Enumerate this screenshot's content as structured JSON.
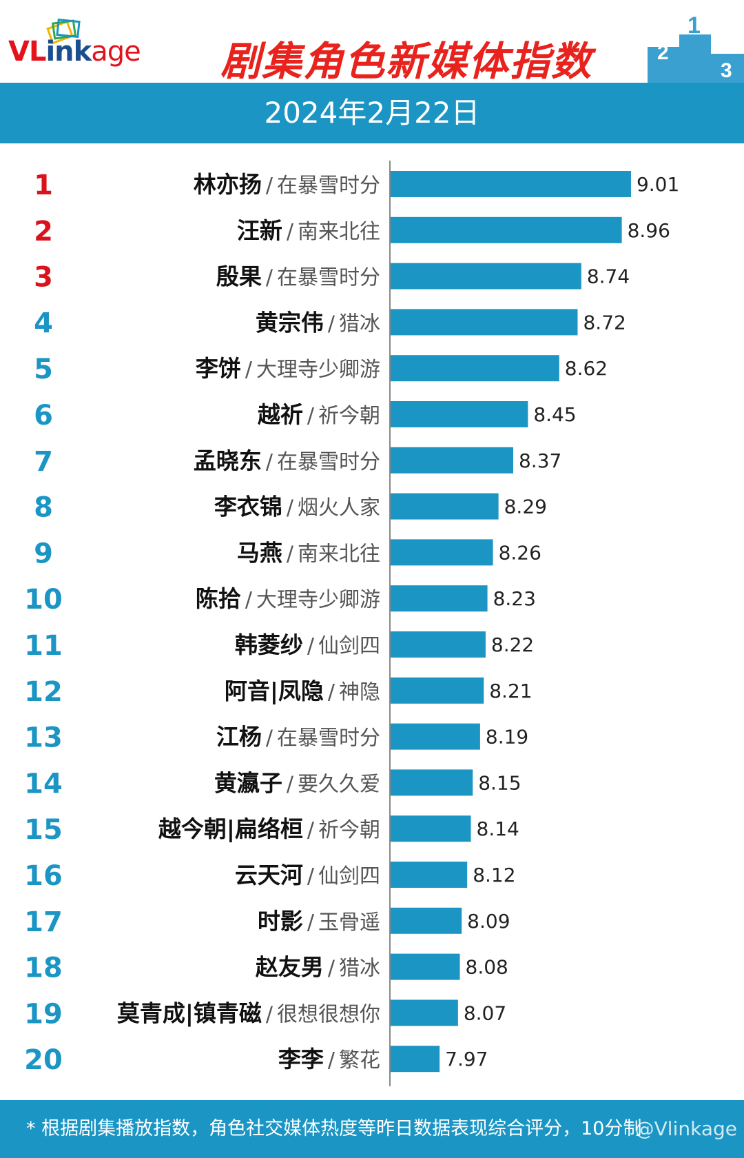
{
  "brand": {
    "logo_v": "VL",
    "logo_ink": "ink",
    "logo_age": "age"
  },
  "header": {
    "title": "剧集角色新媒体指数",
    "date": "2024年2月22日"
  },
  "footer": {
    "note": "* 根据剧集播放指数，角色社交媒体热度等昨日数据表现综合评分，10分制",
    "watermark": "@Vlinkage"
  },
  "colors": {
    "bar": "#1b95c4",
    "rank_top": "#d9121b",
    "rank_other": "#1b95c4",
    "title": "#e8221c"
  },
  "chart_data": {
    "type": "bar",
    "orientation": "horizontal",
    "title": "剧集角色新媒体指数",
    "xlim": [
      7.7,
      9.1
    ],
    "rows": [
      {
        "rank": "1",
        "name": "林亦扬",
        "drama": "在暴雪时分",
        "value": 9.01,
        "label": "9.01"
      },
      {
        "rank": "2",
        "name": "汪新",
        "drama": "南来北往",
        "value": 8.96,
        "label": "8.96"
      },
      {
        "rank": "3",
        "name": "殷果",
        "drama": "在暴雪时分",
        "value": 8.74,
        "label": "8.74"
      },
      {
        "rank": "4",
        "name": "黄宗伟",
        "drama": "猎冰",
        "value": 8.72,
        "label": "8.72"
      },
      {
        "rank": "5",
        "name": "李饼",
        "drama": "大理寺少卿游",
        "value": 8.62,
        "label": "8.62"
      },
      {
        "rank": "6",
        "name": "越祈",
        "drama": "祈今朝",
        "value": 8.45,
        "label": "8.45"
      },
      {
        "rank": "7",
        "name": "孟晓东",
        "drama": "在暴雪时分",
        "value": 8.37,
        "label": "8.37"
      },
      {
        "rank": "8",
        "name": "李衣锦",
        "drama": "烟火人家",
        "value": 8.29,
        "label": "8.29"
      },
      {
        "rank": "9",
        "name": "马燕",
        "drama": "南来北往",
        "value": 8.26,
        "label": "8.26"
      },
      {
        "rank": "10",
        "name": "陈拾",
        "drama": "大理寺少卿游",
        "value": 8.23,
        "label": "8.23"
      },
      {
        "rank": "11",
        "name": "韩菱纱",
        "drama": "仙剑四",
        "value": 8.22,
        "label": "8.22"
      },
      {
        "rank": "12",
        "name": "阿音|凤隐",
        "drama": "神隐",
        "value": 8.21,
        "label": "8.21"
      },
      {
        "rank": "13",
        "name": "江杨",
        "drama": "在暴雪时分",
        "value": 8.19,
        "label": "8.19"
      },
      {
        "rank": "14",
        "name": "黄瀛子",
        "drama": "要久久爱",
        "value": 8.15,
        "label": "8.15"
      },
      {
        "rank": "15",
        "name": "越今朝|扁络桓",
        "drama": "祈今朝",
        "value": 8.14,
        "label": "8.14"
      },
      {
        "rank": "16",
        "name": "云天河",
        "drama": "仙剑四",
        "value": 8.12,
        "label": "8.12"
      },
      {
        "rank": "17",
        "name": "时影",
        "drama": "玉骨遥",
        "value": 8.09,
        "label": "8.09"
      },
      {
        "rank": "18",
        "name": "赵友男",
        "drama": "猎冰",
        "value": 8.08,
        "label": "8.08"
      },
      {
        "rank": "19",
        "name": "莫青成|镇青磁",
        "drama": "很想很想你",
        "value": 8.07,
        "label": "8.07"
      },
      {
        "rank": "20",
        "name": "李李",
        "drama": "繁花",
        "value": 7.97,
        "label": "7.97"
      }
    ]
  }
}
